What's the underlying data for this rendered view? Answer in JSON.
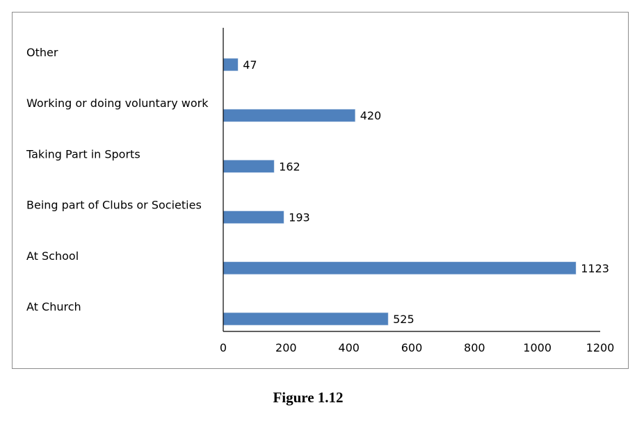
{
  "chart_data": {
    "type": "bar",
    "orientation": "horizontal",
    "title": "",
    "xlabel": "",
    "ylabel": "",
    "categories": [
      "Other",
      "Working or doing voluntary work",
      "Taking Part in Sports",
      "Being part of Clubs or Societies",
      "At School",
      "At Church"
    ],
    "values": [
      47,
      420,
      162,
      193,
      1123,
      525
    ],
    "xlim": [
      0,
      1200
    ],
    "xticks": [
      "0",
      "200",
      "400",
      "600",
      "800",
      "1000",
      "1200"
    ],
    "grid": false,
    "legend": "none",
    "bar_color": "#4f81bd"
  },
  "caption": "Figure 1.12"
}
